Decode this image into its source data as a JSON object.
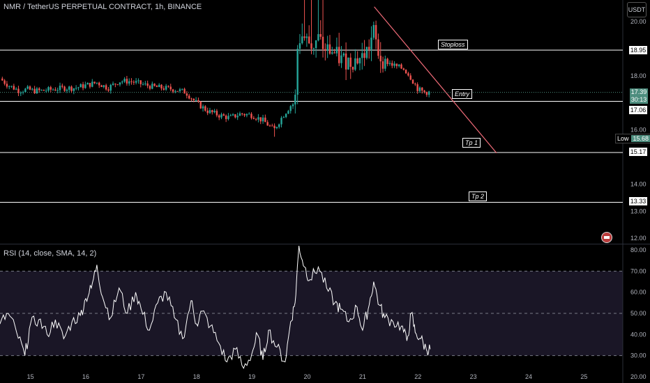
{
  "chart": {
    "title": "NMR / TetherUS PERPETUAL CONTRACT, 1h, BINANCE",
    "currency": "USDT",
    "low_label": "Low",
    "low_value": "15.68",
    "price_current": "17.39",
    "countdown": "30:13",
    "annotations": {
      "stoploss": "Stoploss",
      "entry": "Entry",
      "tp1": "Tp 1",
      "tp2": "Tp 2"
    }
  },
  "rsi": {
    "title": "RSI (14, close, SMA, 14, 2)"
  },
  "colors": {
    "up": "#26a69a",
    "down": "#ef5350",
    "rsi_line": "#ffffff",
    "rsi_band": "#1a1626",
    "trendline": "#f06b78"
  },
  "chart_data": [
    {
      "type": "candlestick",
      "title": "NMR / TetherUS PERPETUAL CONTRACT, 1h, BINANCE",
      "x_ticks": [
        "15",
        "16",
        "17",
        "18",
        "19",
        "20",
        "21",
        "22",
        "23",
        "24",
        "25"
      ],
      "y_ticks": [
        "12.00",
        "13.00",
        "14.00",
        "16.00",
        "18.00",
        "20.00"
      ],
      "ylim": [
        11.8,
        20.8
      ],
      "xlim": [
        14.45,
        25.7
      ],
      "horizontal_levels": [
        {
          "label": "Stoploss",
          "value": 18.95
        },
        {
          "label": "Entry",
          "value": 17.06
        },
        {
          "label": "Tp 1",
          "value": 15.17
        },
        {
          "label": "Tp 2",
          "value": 13.33
        }
      ],
      "trendline": {
        "from": [
          21.21,
          20.55
        ],
        "to": [
          23.42,
          15.15
        ]
      },
      "last_price": 17.39,
      "low": 15.68,
      "close_path": [
        [
          14.45,
          17.9
        ],
        [
          14.6,
          17.65
        ],
        [
          14.8,
          17.45
        ],
        [
          14.95,
          17.5
        ],
        [
          15.05,
          17.45
        ],
        [
          15.2,
          17.45
        ],
        [
          15.4,
          17.5
        ],
        [
          15.6,
          17.55
        ],
        [
          15.8,
          17.55
        ],
        [
          16.0,
          17.65
        ],
        [
          16.2,
          17.75
        ],
        [
          16.4,
          17.55
        ],
        [
          16.6,
          17.8
        ],
        [
          16.8,
          17.8
        ],
        [
          17.0,
          17.7
        ],
        [
          17.2,
          17.6
        ],
        [
          17.4,
          17.55
        ],
        [
          17.6,
          17.5
        ],
        [
          17.8,
          17.4
        ],
        [
          18.0,
          17.0
        ],
        [
          18.2,
          16.7
        ],
        [
          18.4,
          16.55
        ],
        [
          18.6,
          16.45
        ],
        [
          18.8,
          16.6
        ],
        [
          19.0,
          16.55
        ],
        [
          19.2,
          16.35
        ],
        [
          19.4,
          16.0
        ],
        [
          19.55,
          16.5
        ],
        [
          19.7,
          16.9
        ],
        [
          19.78,
          17.0
        ],
        [
          19.82,
          19.2
        ],
        [
          19.9,
          19.5
        ],
        [
          20.0,
          19.3
        ],
        [
          20.1,
          19.1
        ],
        [
          20.2,
          19.4
        ],
        [
          20.3,
          19.0
        ],
        [
          20.45,
          18.9
        ],
        [
          20.6,
          18.6
        ],
        [
          20.8,
          18.55
        ],
        [
          21.0,
          18.7
        ],
        [
          21.1,
          19.0
        ],
        [
          21.2,
          19.6
        ],
        [
          21.3,
          18.7
        ],
        [
          21.45,
          18.5
        ],
        [
          21.6,
          18.35
        ],
        [
          21.75,
          18.25
        ],
        [
          21.85,
          18.0
        ],
        [
          22.0,
          17.5
        ],
        [
          22.1,
          17.4
        ],
        [
          22.2,
          17.39
        ]
      ]
    },
    {
      "type": "line",
      "title": "RSI (14, close, SMA, 14, 2)",
      "x_ticks": [
        "15",
        "16",
        "17",
        "18",
        "19",
        "20",
        "21",
        "22",
        "23",
        "24",
        "25"
      ],
      "y_ticks": [
        "20.00",
        "30.00",
        "40.00",
        "50.00",
        "60.00",
        "70.00",
        "80.00"
      ],
      "ylim": [
        17,
        83
      ],
      "xlim": [
        14.45,
        25.7
      ],
      "bands": [
        30,
        50,
        70
      ],
      "series": [
        {
          "x": [
            14.45,
            14.6,
            14.75,
            14.9,
            15.0,
            15.15,
            15.3,
            15.45,
            15.6,
            15.75,
            15.9,
            16.0,
            16.1,
            16.2,
            16.3,
            16.45,
            16.6,
            16.75,
            16.9,
            17.0,
            17.15,
            17.3,
            17.45,
            17.6,
            17.75,
            17.9,
            18.0,
            18.1,
            18.25,
            18.4,
            18.55,
            18.7,
            18.85,
            19.0,
            19.1,
            19.2,
            19.3,
            19.45,
            19.6,
            19.7,
            19.78,
            19.85,
            19.95,
            20.05,
            20.2,
            20.35,
            20.5,
            20.6,
            20.75,
            20.9,
            21.0,
            21.1,
            21.2,
            21.3,
            21.4,
            21.55,
            21.7,
            21.8,
            21.88,
            21.95,
            22.05,
            22.15,
            22.22
          ],
          "y": [
            45,
            50,
            41,
            30,
            45,
            47,
            40,
            47,
            38,
            46,
            49,
            57,
            62,
            73,
            58,
            48,
            62,
            50,
            60,
            52,
            42,
            55,
            60,
            48,
            38,
            56,
            45,
            51,
            44,
            36,
            27,
            33,
            24,
            31,
            40,
            28,
            42,
            34,
            27,
            46,
            55,
            82,
            72,
            66,
            72,
            62,
            55,
            52,
            46,
            53,
            42,
            52,
            65,
            54,
            48,
            46,
            44,
            37,
            50,
            41,
            38,
            33,
            33
          ]
        }
      ]
    }
  ]
}
